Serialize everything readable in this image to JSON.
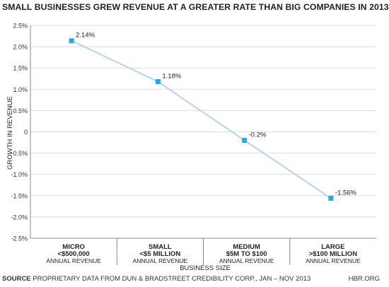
{
  "title": "SMALL BUSINESSES GREW REVENUE AT A GREATER RATE THAN BIG COMPANIES IN 2013",
  "footer": {
    "source_label": "SOURCE",
    "source_text": "PROPRIETARY DATA FROM DUN & BRADSTREET CREDIBILITY CORP., JAN – NOV 2013",
    "brand": "HBR.ORG"
  },
  "colors": {
    "line": "#b3d4ea",
    "marker": "#2aa8e0",
    "grid": "#dddddd",
    "axis": "#888888"
  },
  "chart_data": {
    "type": "line",
    "categories": [
      [
        "MICRO",
        "<$500,000",
        "ANNUAL REVENUE"
      ],
      [
        "SMALL",
        "<$5 MILLION",
        "ANNUAL REVENUE"
      ],
      [
        "MEDIUM",
        "$5M TO $100",
        "ANNUAL REVENUE"
      ],
      [
        "LARGE",
        ">$100 MILLION",
        "ANNUAL REVENUE"
      ]
    ],
    "values": [
      2.14,
      1.18,
      -0.2,
      -1.56
    ],
    "data_labels": [
      "2.14%",
      "1.18%",
      "-0.2%",
      "-1.56%"
    ],
    "ylim": [
      -2.5,
      2.5
    ],
    "yticks": [
      2.5,
      2.0,
      1.5,
      1.0,
      0.5,
      0.0,
      -0.5,
      -1.0,
      -1.5,
      -2.0,
      -2.5
    ],
    "ytick_labels": [
      "2.5%",
      "2.0%",
      "1.5%",
      "1.0%",
      "0.5%",
      "0",
      "-0.5%",
      "-1.0%",
      "-1.5%",
      "-2.0%",
      "-2.5%"
    ],
    "xlabel": "BUSINESS SIZE",
    "ylabel": "GROWTH IN REVENUE",
    "grid": true
  }
}
